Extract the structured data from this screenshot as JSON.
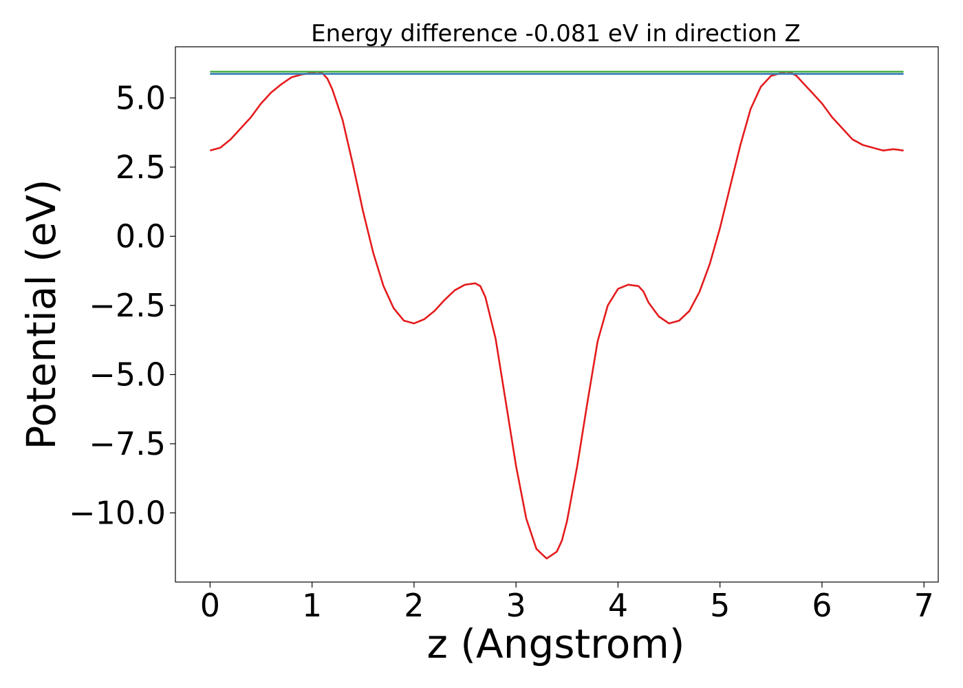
{
  "chart_data": {
    "type": "line",
    "title": "Energy difference -0.081 eV in direction Z",
    "xlabel": "z (Angstrom)",
    "ylabel": "Potential (eV)",
    "xlim": [
      -0.34,
      7.14
    ],
    "ylim": [
      -12.5,
      6.85
    ],
    "xticks": [
      0,
      1,
      2,
      3,
      4,
      5,
      6,
      7
    ],
    "xtick_labels": [
      "0",
      "1",
      "2",
      "3",
      "4",
      "5",
      "6",
      "7"
    ],
    "yticks": [
      5.0,
      2.5,
      0.0,
      -2.5,
      -5.0,
      -7.5,
      -10.0
    ],
    "ytick_labels": [
      "5.0",
      "2.5",
      "0.0",
      "−2.5",
      "−5.0",
      "−7.5",
      "−10.0"
    ],
    "grid": false,
    "series": [
      {
        "color": "#e41a1c",
        "x": [
          0.0,
          0.1,
          0.2,
          0.3,
          0.4,
          0.5,
          0.6,
          0.7,
          0.8,
          0.9,
          1.0,
          1.05,
          1.1,
          1.15,
          1.2,
          1.3,
          1.4,
          1.5,
          1.6,
          1.7,
          1.8,
          1.9,
          2.0,
          2.1,
          2.2,
          2.3,
          2.4,
          2.5,
          2.6,
          2.65,
          2.7,
          2.8,
          2.9,
          3.0,
          3.1,
          3.2,
          3.3,
          3.4,
          3.45,
          3.5,
          3.6,
          3.7,
          3.8,
          3.9,
          4.0,
          4.1,
          4.2,
          4.25,
          4.3,
          4.4,
          4.5,
          4.6,
          4.7,
          4.8,
          4.9,
          5.0,
          5.1,
          5.2,
          5.3,
          5.4,
          5.5,
          5.6,
          5.65,
          5.7,
          5.75,
          5.8,
          5.9,
          6.0,
          6.1,
          6.2,
          6.3,
          6.4,
          6.5,
          6.6,
          6.7,
          6.8
        ],
        "y": [
          3.1,
          3.2,
          3.5,
          3.9,
          4.3,
          4.8,
          5.2,
          5.5,
          5.75,
          5.85,
          5.9,
          5.95,
          5.9,
          5.7,
          5.3,
          4.2,
          2.6,
          0.9,
          -0.6,
          -1.8,
          -2.6,
          -3.05,
          -3.15,
          -3.0,
          -2.7,
          -2.3,
          -1.95,
          -1.75,
          -1.7,
          -1.8,
          -2.2,
          -3.7,
          -6.0,
          -8.3,
          -10.2,
          -11.3,
          -11.65,
          -11.4,
          -11.0,
          -10.3,
          -8.3,
          -6.0,
          -3.8,
          -2.5,
          -1.9,
          -1.75,
          -1.8,
          -2.0,
          -2.4,
          -2.9,
          -3.15,
          -3.05,
          -2.7,
          -2.0,
          -1.0,
          0.3,
          1.8,
          3.3,
          4.6,
          5.4,
          5.8,
          5.9,
          5.95,
          5.9,
          5.8,
          5.6,
          5.2,
          4.8,
          4.3,
          3.9,
          3.5,
          3.3,
          3.2,
          3.1,
          3.15,
          3.1
        ]
      },
      {
        "color": "#4daf4a",
        "x": [
          0.0,
          6.8
        ],
        "y": [
          5.95,
          5.95
        ]
      },
      {
        "color": "#377eb8",
        "x": [
          0.0,
          6.8
        ],
        "y": [
          5.87,
          5.87
        ]
      }
    ]
  }
}
